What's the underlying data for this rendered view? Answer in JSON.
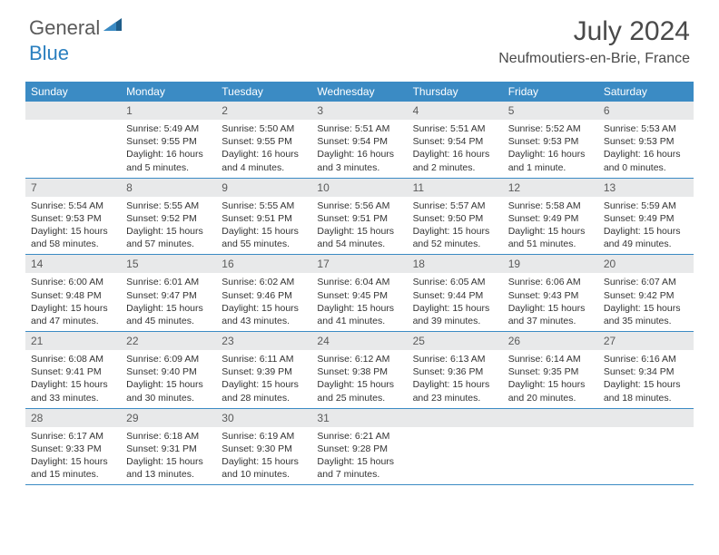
{
  "brand": {
    "part1": "General",
    "part2": "Blue"
  },
  "title": "July 2024",
  "location": "Neufmoutiers-en-Brie, France",
  "header_bg": "#3b8bc4",
  "daynum_bg": "#e8e9ea",
  "border_color": "#3b8bc4",
  "weekdays": [
    "Sunday",
    "Monday",
    "Tuesday",
    "Wednesday",
    "Thursday",
    "Friday",
    "Saturday"
  ],
  "weeks": [
    [
      null,
      {
        "n": "1",
        "sr": "5:49 AM",
        "ss": "9:55 PM",
        "dl": "16 hours and 5 minutes."
      },
      {
        "n": "2",
        "sr": "5:50 AM",
        "ss": "9:55 PM",
        "dl": "16 hours and 4 minutes."
      },
      {
        "n": "3",
        "sr": "5:51 AM",
        "ss": "9:54 PM",
        "dl": "16 hours and 3 minutes."
      },
      {
        "n": "4",
        "sr": "5:51 AM",
        "ss": "9:54 PM",
        "dl": "16 hours and 2 minutes."
      },
      {
        "n": "5",
        "sr": "5:52 AM",
        "ss": "9:53 PM",
        "dl": "16 hours and 1 minute."
      },
      {
        "n": "6",
        "sr": "5:53 AM",
        "ss": "9:53 PM",
        "dl": "16 hours and 0 minutes."
      }
    ],
    [
      {
        "n": "7",
        "sr": "5:54 AM",
        "ss": "9:53 PM",
        "dl": "15 hours and 58 minutes."
      },
      {
        "n": "8",
        "sr": "5:55 AM",
        "ss": "9:52 PM",
        "dl": "15 hours and 57 minutes."
      },
      {
        "n": "9",
        "sr": "5:55 AM",
        "ss": "9:51 PM",
        "dl": "15 hours and 55 minutes."
      },
      {
        "n": "10",
        "sr": "5:56 AM",
        "ss": "9:51 PM",
        "dl": "15 hours and 54 minutes."
      },
      {
        "n": "11",
        "sr": "5:57 AM",
        "ss": "9:50 PM",
        "dl": "15 hours and 52 minutes."
      },
      {
        "n": "12",
        "sr": "5:58 AM",
        "ss": "9:49 PM",
        "dl": "15 hours and 51 minutes."
      },
      {
        "n": "13",
        "sr": "5:59 AM",
        "ss": "9:49 PM",
        "dl": "15 hours and 49 minutes."
      }
    ],
    [
      {
        "n": "14",
        "sr": "6:00 AM",
        "ss": "9:48 PM",
        "dl": "15 hours and 47 minutes."
      },
      {
        "n": "15",
        "sr": "6:01 AM",
        "ss": "9:47 PM",
        "dl": "15 hours and 45 minutes."
      },
      {
        "n": "16",
        "sr": "6:02 AM",
        "ss": "9:46 PM",
        "dl": "15 hours and 43 minutes."
      },
      {
        "n": "17",
        "sr": "6:04 AM",
        "ss": "9:45 PM",
        "dl": "15 hours and 41 minutes."
      },
      {
        "n": "18",
        "sr": "6:05 AM",
        "ss": "9:44 PM",
        "dl": "15 hours and 39 minutes."
      },
      {
        "n": "19",
        "sr": "6:06 AM",
        "ss": "9:43 PM",
        "dl": "15 hours and 37 minutes."
      },
      {
        "n": "20",
        "sr": "6:07 AM",
        "ss": "9:42 PM",
        "dl": "15 hours and 35 minutes."
      }
    ],
    [
      {
        "n": "21",
        "sr": "6:08 AM",
        "ss": "9:41 PM",
        "dl": "15 hours and 33 minutes."
      },
      {
        "n": "22",
        "sr": "6:09 AM",
        "ss": "9:40 PM",
        "dl": "15 hours and 30 minutes."
      },
      {
        "n": "23",
        "sr": "6:11 AM",
        "ss": "9:39 PM",
        "dl": "15 hours and 28 minutes."
      },
      {
        "n": "24",
        "sr": "6:12 AM",
        "ss": "9:38 PM",
        "dl": "15 hours and 25 minutes."
      },
      {
        "n": "25",
        "sr": "6:13 AM",
        "ss": "9:36 PM",
        "dl": "15 hours and 23 minutes."
      },
      {
        "n": "26",
        "sr": "6:14 AM",
        "ss": "9:35 PM",
        "dl": "15 hours and 20 minutes."
      },
      {
        "n": "27",
        "sr": "6:16 AM",
        "ss": "9:34 PM",
        "dl": "15 hours and 18 minutes."
      }
    ],
    [
      {
        "n": "28",
        "sr": "6:17 AM",
        "ss": "9:33 PM",
        "dl": "15 hours and 15 minutes."
      },
      {
        "n": "29",
        "sr": "6:18 AM",
        "ss": "9:31 PM",
        "dl": "15 hours and 13 minutes."
      },
      {
        "n": "30",
        "sr": "6:19 AM",
        "ss": "9:30 PM",
        "dl": "15 hours and 10 minutes."
      },
      {
        "n": "31",
        "sr": "6:21 AM",
        "ss": "9:28 PM",
        "dl": "15 hours and 7 minutes."
      },
      null,
      null,
      null
    ]
  ],
  "labels": {
    "sunrise": "Sunrise: ",
    "sunset": "Sunset: ",
    "daylight": "Daylight: "
  }
}
